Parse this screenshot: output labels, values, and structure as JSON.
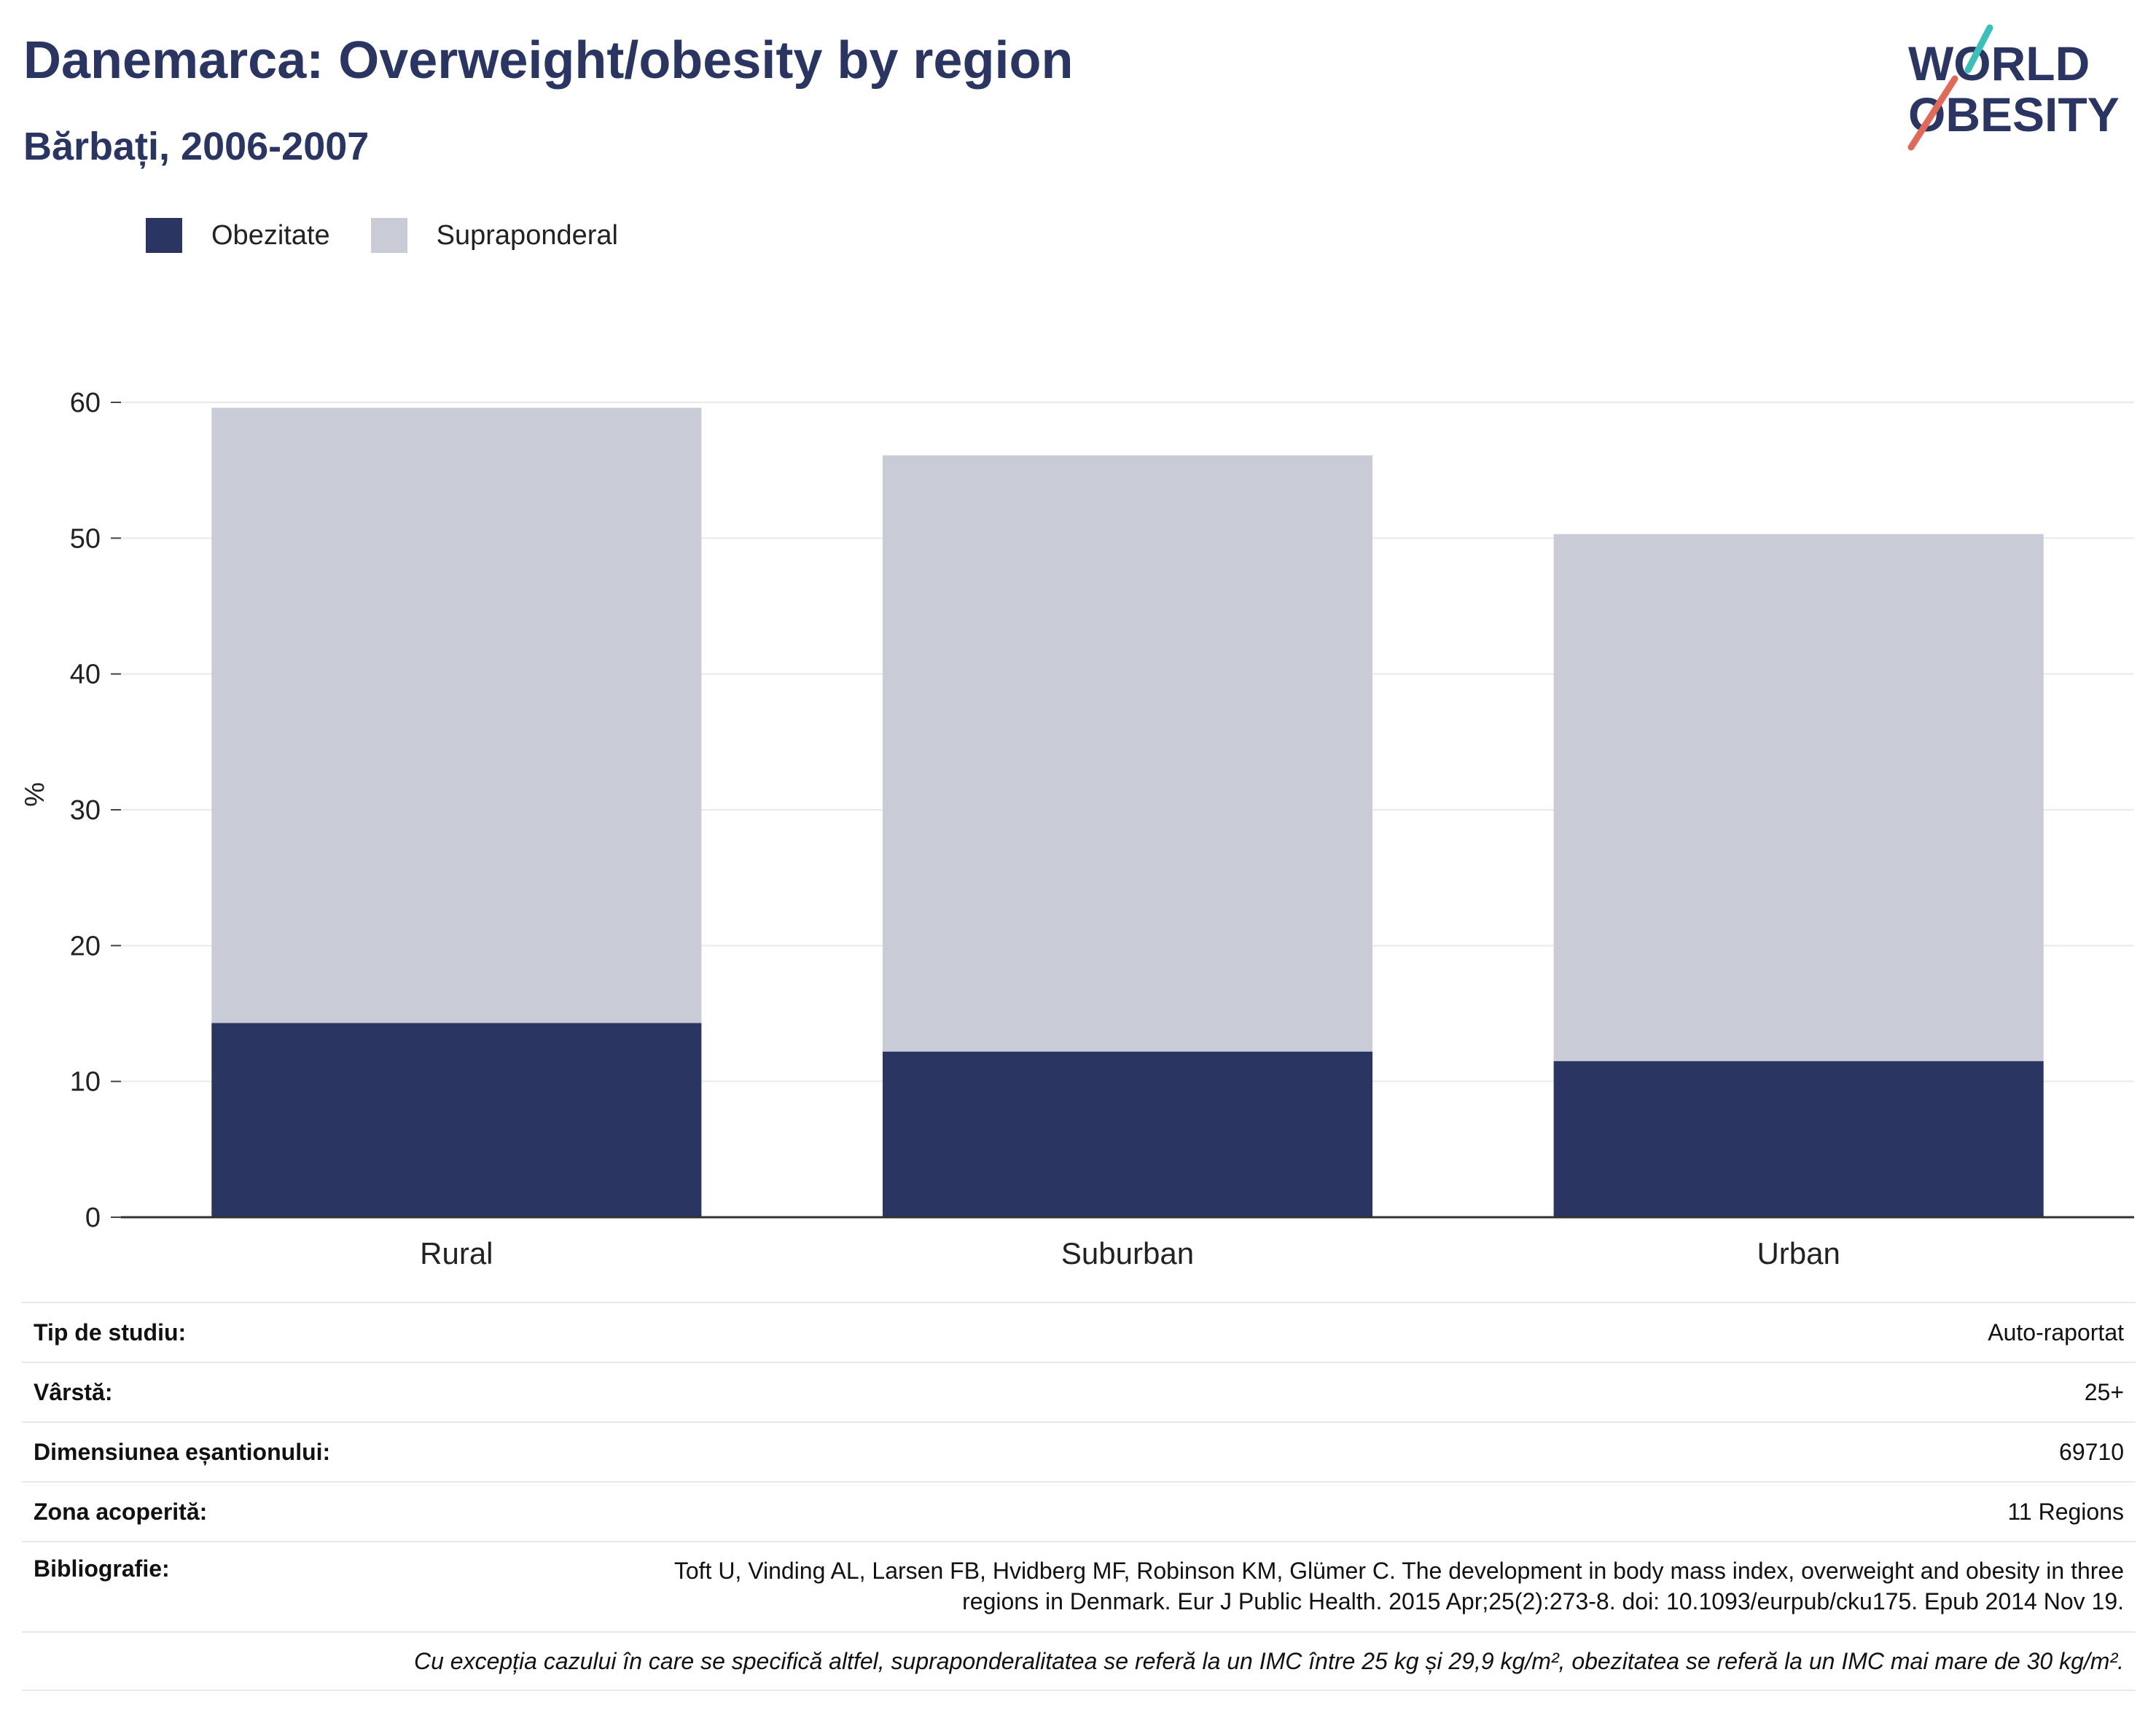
{
  "header": {
    "title": "Danemarca: Overweight/obesity by region",
    "subtitle": "Bărbați, 2006-2007"
  },
  "logo": {
    "line1": "WORLD",
    "line2": "OBESITY",
    "accent_teal": "#3bbfb8",
    "accent_coral": "#e06a5a"
  },
  "colors": {
    "obesity": "#2a3562",
    "overweight": "#c9cbd7",
    "title": "#2a3562"
  },
  "chart_data": {
    "type": "bar",
    "stacked": true,
    "categories": [
      "Rural",
      "Suburban",
      "Urban"
    ],
    "series": [
      {
        "name": "Obezitate",
        "color": "#2a3562",
        "values": [
          14.3,
          12.2,
          11.5
        ]
      },
      {
        "name": "Supraponderal",
        "color": "#c9cbd7",
        "values": [
          45.3,
          43.9,
          38.8
        ]
      }
    ],
    "ylabel": "%",
    "ylim": [
      0,
      60
    ],
    "yticks": [
      0,
      10,
      20,
      30,
      40,
      50,
      60
    ],
    "grid": true,
    "legend": "top-left"
  },
  "info": {
    "rows": [
      {
        "key": "Tip de studiu:",
        "value": "Auto-raportat"
      },
      {
        "key": "Vârstă:",
        "value": "25+"
      },
      {
        "key": "Dimensiunea eșantionului:",
        "value": "69710"
      },
      {
        "key": "Zona acoperită:",
        "value": "11 Regions"
      }
    ],
    "bibliography_key": "Bibliografie:",
    "bibliography": "Toft U, Vinding AL, Larsen FB, Hvidberg MF, Robinson KM, Glümer C. The development in body mass index, overweight and obesity in three regions in Denmark. Eur J Public Health. 2015 Apr;25(2):273-8. doi: 10.1093/eurpub/cku175. Epub 2014 Nov 19.",
    "note": "Cu excepția cazului în care se specifică altfel, supraponderalitatea se referă la un IMC între 25 kg și 29,9 kg/m², obezitatea se referă la un IMC mai mare de 30 kg/m²."
  }
}
